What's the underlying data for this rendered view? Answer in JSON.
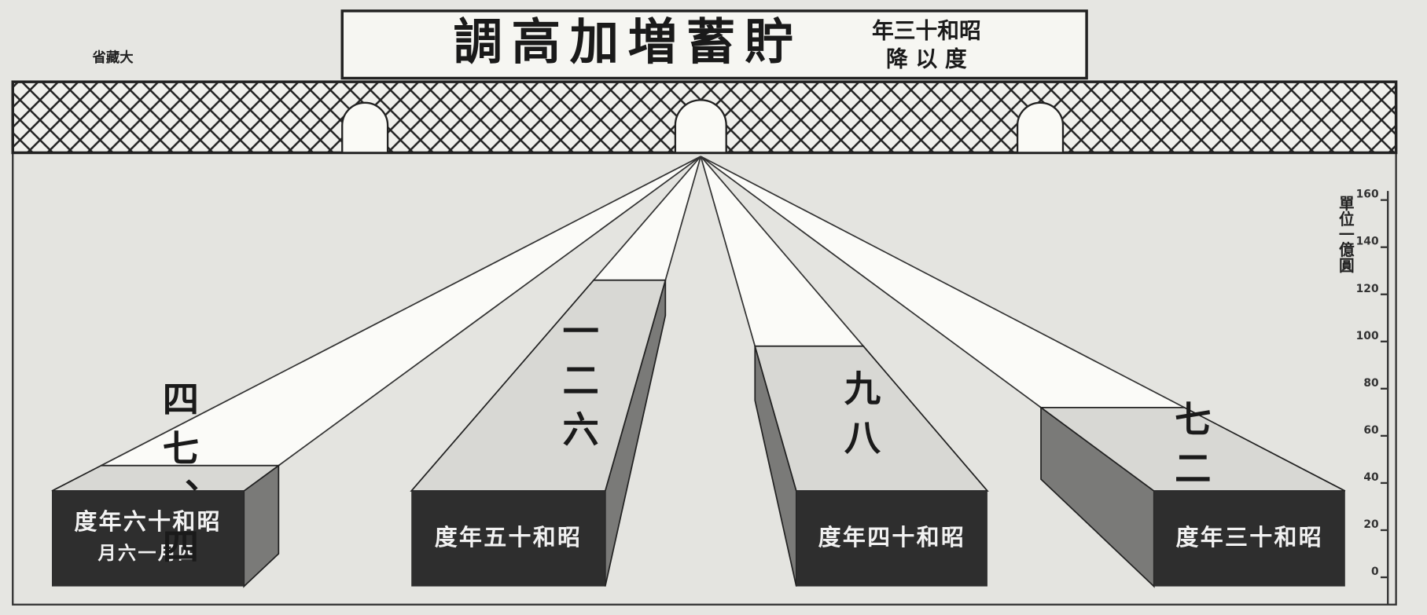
{
  "chart_data": {
    "type": "bar",
    "title": "調高加増蓄貯",
    "subtitle": [
      "年三十和昭",
      "降 以 度"
    ],
    "source": "省藏大",
    "y_axis_label": "單位一億圓",
    "categories": [
      [
        "度年六十和昭",
        "月六一月四"
      ],
      [
        "度年五十和昭"
      ],
      [
        "度年四十和昭"
      ],
      [
        "度年三十和昭"
      ]
    ],
    "values": [
      47.4,
      126,
      98,
      72
    ],
    "value_labels": [
      "四七、四",
      "一二六",
      "九八",
      "七二"
    ],
    "colors": {
      "top": "#d8d8d4",
      "front": "#2e2e2e",
      "side": "#7a7a78",
      "beam": "#fbfbf8"
    },
    "ylim": [
      0,
      160
    ],
    "yticks": [
      0,
      20,
      40,
      60,
      80,
      100,
      120,
      140,
      160
    ]
  }
}
